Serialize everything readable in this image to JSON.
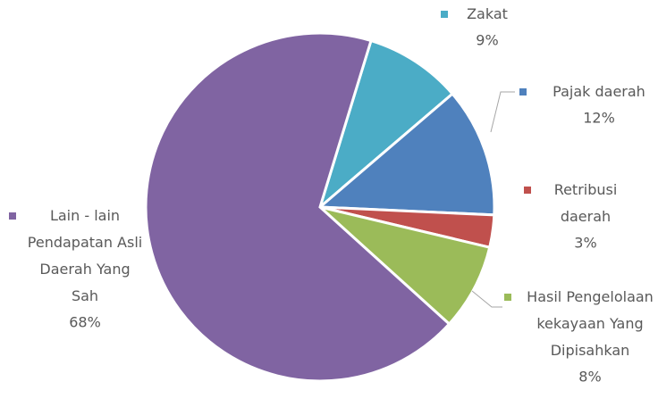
{
  "chart_data": {
    "type": "pie",
    "categories": [
      "Zakat",
      "Pajak daerah",
      "Retribusi daerah",
      "Hasil Pengelolaan kekayaan Yang Dipisahkan",
      "Lain - lain Pendapatan Asli Daerah Yang Sah"
    ],
    "values": [
      9,
      12,
      3,
      8,
      68
    ],
    "value_labels": [
      "9%",
      "12%",
      "3%",
      "8%",
      "68%"
    ],
    "colors": [
      "#4bacc6",
      "#4f81bd",
      "#c0504d",
      "#9bbb59",
      "#8064a2"
    ]
  }
}
